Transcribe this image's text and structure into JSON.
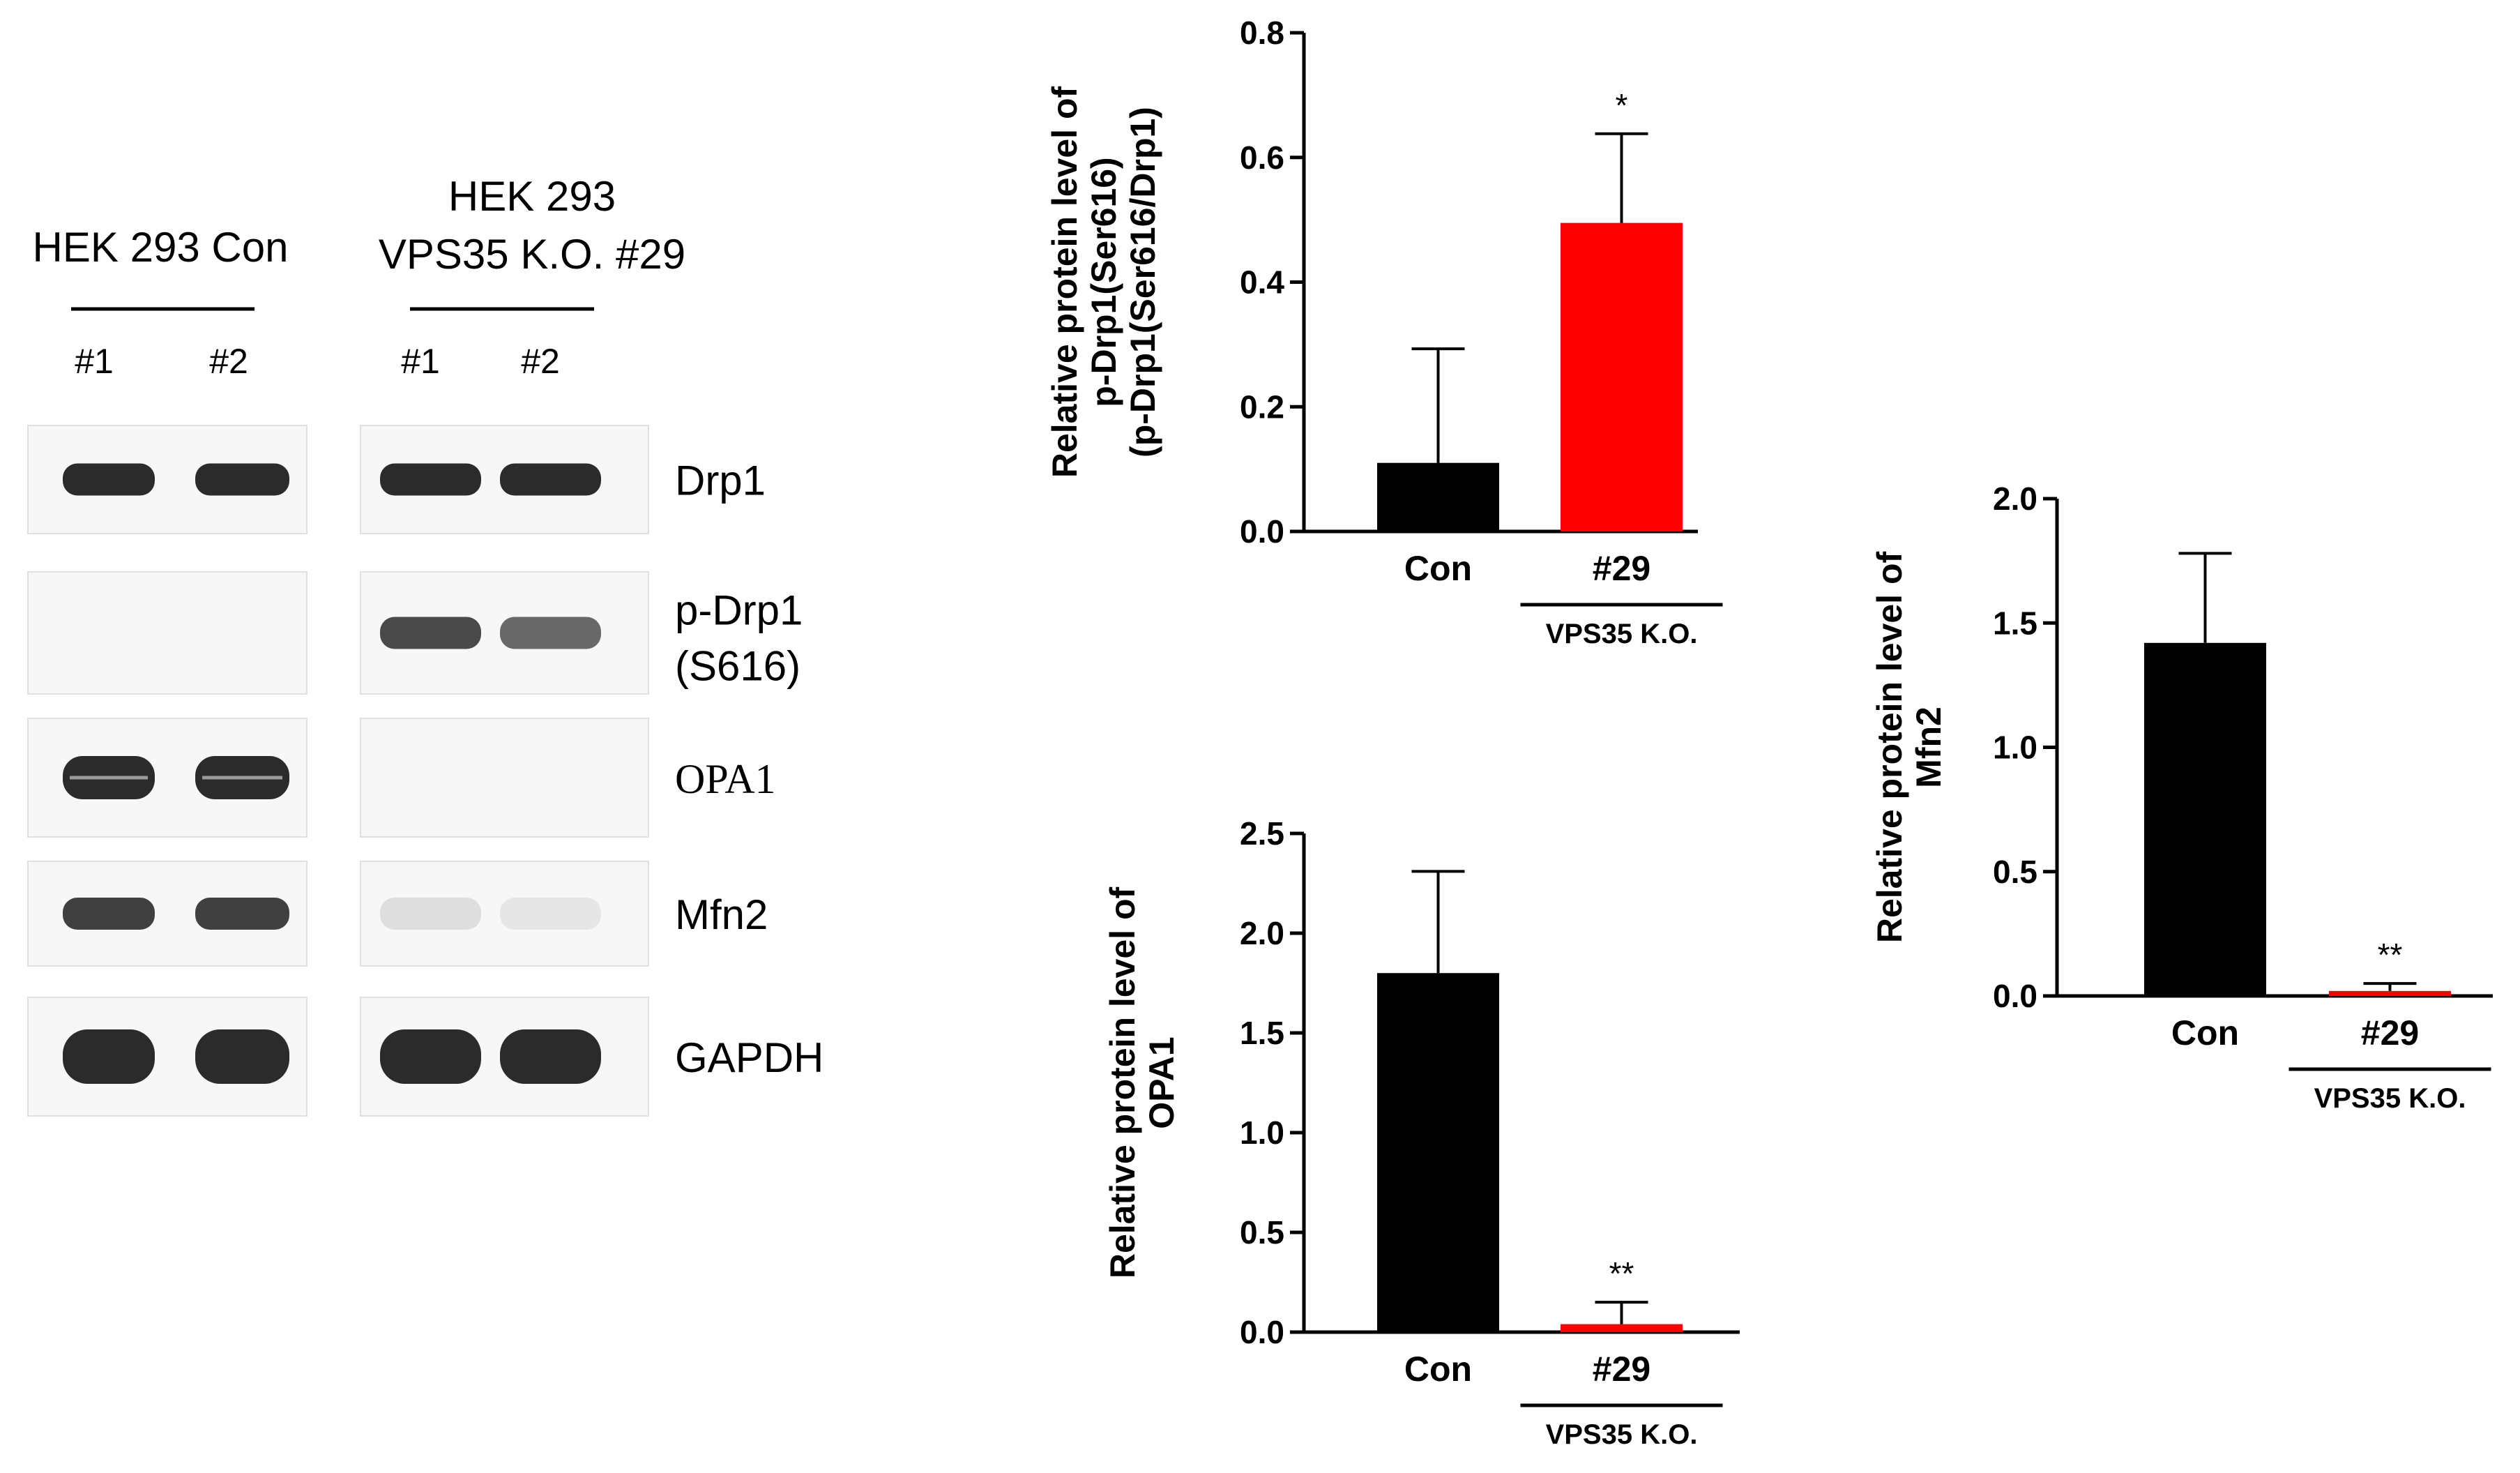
{
  "blot": {
    "group_con_label": "HEK 293 Con",
    "group_ko_label_line1": "HEK 293",
    "group_ko_label_line2": "VPS35 K.O. #29",
    "lane_labels": [
      "#1",
      "#2",
      "#1",
      "#2"
    ],
    "rows": [
      {
        "label": "Drp1",
        "label_line2": "",
        "serif": false,
        "con_intensity": [
          1,
          1
        ],
        "ko_intensity": [
          1,
          1
        ]
      },
      {
        "label": "p-Drp1",
        "label_line2": "(S616)",
        "serif": false,
        "con_intensity": [
          0,
          0
        ],
        "ko_intensity": [
          0.85,
          0.7
        ]
      },
      {
        "label": "OPA1",
        "label_line2": "",
        "serif": true,
        "con_intensity": [
          1,
          1
        ],
        "ko_intensity": [
          0,
          0
        ]
      },
      {
        "label": "Mfn2",
        "label_line2": "",
        "serif": false,
        "con_intensity": [
          0.9,
          0.9
        ],
        "ko_intensity": [
          0.12,
          0.08
        ]
      },
      {
        "label": "GAPDH",
        "label_line2": "",
        "serif": false,
        "con_intensity": [
          1,
          1
        ],
        "ko_intensity": [
          1,
          1
        ]
      }
    ],
    "colors": {
      "band": "#2b2b2b",
      "membrane": "#f7f7f7"
    }
  },
  "chart_data": [
    {
      "type": "bar",
      "categories": [
        "Con",
        "#29"
      ],
      "values": [
        0.11,
        0.495
      ],
      "errors": [
        0.183,
        0.143
      ],
      "significance": [
        "",
        "*"
      ],
      "bar_colors": [
        "#000000",
        "#ff0000"
      ],
      "ylabel_lines": [
        "Relative protein level of",
        "p-Drp1(Ser616)",
        "(p-Drp1(Ser616/Drp1)"
      ],
      "group_label": "VPS35 K.O.",
      "ylim": [
        0,
        0.8
      ],
      "yticks": [
        "0.0",
        "0.2",
        "0.4",
        "0.6",
        "0.8"
      ]
    },
    {
      "type": "bar",
      "categories": [
        "Con",
        "#29"
      ],
      "values": [
        1.8,
        0.04
      ],
      "errors": [
        0.51,
        0.11
      ],
      "significance": [
        "",
        "**"
      ],
      "bar_colors": [
        "#000000",
        "#ff0000"
      ],
      "ylabel_lines": [
        "Relative protein level of",
        "OPA1"
      ],
      "group_label": "VPS35 K.O.",
      "ylim": [
        0,
        2.5
      ],
      "yticks": [
        "0.0",
        "0.5",
        "1.0",
        "1.5",
        "2.0",
        "2.5"
      ]
    },
    {
      "type": "bar",
      "categories": [
        "Con",
        "#29"
      ],
      "values": [
        1.42,
        0.02
      ],
      "errors": [
        0.36,
        0.03
      ],
      "significance": [
        "",
        "**"
      ],
      "bar_colors": [
        "#000000",
        "#ff0000"
      ],
      "ylabel_lines": [
        "Relative protein level of",
        "Mfn2"
      ],
      "group_label": "VPS35 K.O.",
      "ylim": [
        0,
        2.0
      ],
      "yticks": [
        "0.0",
        "0.5",
        "1.0",
        "1.5",
        "2.0"
      ]
    }
  ]
}
